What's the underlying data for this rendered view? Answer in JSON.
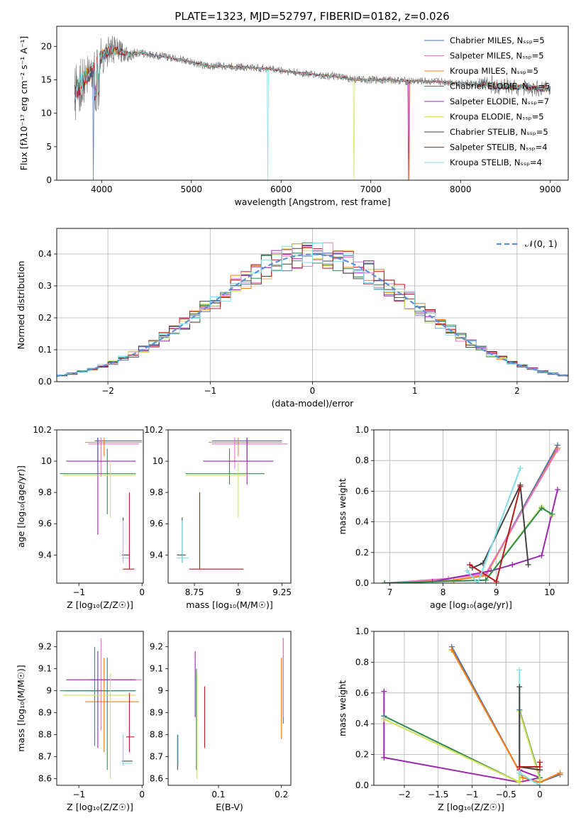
{
  "title": "PLATE=1323, MJD=52797, FIBERID=0182, z=0.026",
  "chart_data": [
    {
      "id": "spectrum",
      "type": "line",
      "xlabel": "wavelength [Angstrom, rest frame]",
      "ylabel": "Flux [fλ10⁻¹⁷ erg cm⁻² s⁻¹ A⁻¹]",
      "xlim": [
        3500,
        9200
      ],
      "ylim": [
        0,
        23
      ],
      "xticks": [
        4000,
        5000,
        6000,
        7000,
        8000,
        9000
      ],
      "yticks": [
        0,
        5,
        10,
        15,
        20
      ],
      "grid": false,
      "legend_position": "top-right",
      "series": [
        {
          "name": "Chabrier MILES, Nₛₛₚ=5",
          "color": "#4c72b0"
        },
        {
          "name": "Salpeter MILES, Nₛₛₚ=5",
          "color": "#e377c2"
        },
        {
          "name": "Kroupa MILES, Nₛₛₚ=5",
          "color": "#ff7f0e"
        },
        {
          "name": "Chabrier ELODIE, Nₛₛₚ=5",
          "color": "#2e8b57"
        },
        {
          "name": "Salpeter ELODIE, Nₛₛₚ=7",
          "color": "#9c27b0"
        },
        {
          "name": "Kroupa ELODIE, Nₛₛₚ=5",
          "color": "#d4e157"
        },
        {
          "name": "Chabrier STELIB, Nₛₛₚ=5",
          "color": "#424242"
        },
        {
          "name": "Salpeter STELIB, Nₛₛₚ=4",
          "color": "#b71c1c"
        },
        {
          "name": "Kroupa STELIB, Nₛₛₚ=4",
          "color": "#80deea"
        }
      ],
      "continuum": [
        [
          3700,
          13
        ],
        [
          3800,
          15
        ],
        [
          3900,
          16.5
        ],
        [
          4000,
          18.5
        ],
        [
          4100,
          19.5
        ],
        [
          4200,
          19.3
        ],
        [
          4300,
          18.8
        ],
        [
          4400,
          19.0
        ],
        [
          4500,
          18.9
        ],
        [
          4600,
          18.6
        ],
        [
          4700,
          18.5
        ],
        [
          4800,
          18.2
        ],
        [
          4900,
          18.0
        ],
        [
          5000,
          17.6
        ],
        [
          5100,
          17.3
        ],
        [
          5200,
          17.0
        ],
        [
          5300,
          17.1
        ],
        [
          5400,
          17.0
        ],
        [
          5500,
          16.9
        ],
        [
          5600,
          16.9
        ],
        [
          5700,
          16.8
        ],
        [
          5800,
          16.7
        ],
        [
          5900,
          16.6
        ],
        [
          6000,
          16.4
        ],
        [
          6100,
          16.2
        ],
        [
          6200,
          16.0
        ],
        [
          6300,
          15.9
        ],
        [
          6400,
          15.7
        ],
        [
          6500,
          15.6
        ],
        [
          6600,
          15.5
        ],
        [
          6700,
          15.3
        ],
        [
          6800,
          15.1
        ],
        [
          6900,
          15.0
        ],
        [
          7000,
          15.0
        ],
        [
          7100,
          15.0
        ],
        [
          7200,
          15.0
        ],
        [
          7300,
          14.9
        ],
        [
          7400,
          14.8
        ],
        [
          7500,
          14.8
        ],
        [
          7600,
          14.8
        ],
        [
          7700,
          14.7
        ],
        [
          7800,
          14.7
        ],
        [
          7900,
          14.6
        ],
        [
          8000,
          14.5
        ],
        [
          8100,
          14.4
        ],
        [
          8200,
          14.3
        ],
        [
          8300,
          14.3
        ],
        [
          8400,
          14.2
        ],
        [
          8500,
          14.0
        ],
        [
          8600,
          13.9
        ],
        [
          8700,
          13.9
        ],
        [
          8800,
          13.8
        ],
        [
          8900,
          13.7
        ],
        [
          9000,
          13.7
        ]
      ]
    },
    {
      "id": "residual-histogram",
      "type": "bar",
      "xlabel": "(data-model)/error",
      "ylabel": "Normed distribution",
      "xlim": [
        -2.5,
        2.5
      ],
      "ylim": [
        0,
        0.48
      ],
      "xticks": [
        -2,
        -1,
        0,
        1,
        2
      ],
      "yticks": [
        0.0,
        0.1,
        0.2,
        0.3,
        0.4
      ],
      "grid": true,
      "legend_position": "top-right",
      "reference_curve": {
        "name": "𝒩(0, 1)",
        "color": "#5b8fd6",
        "style": "dashed"
      },
      "bin_width": 0.1
    },
    {
      "id": "age-vs-z",
      "type": "scatter",
      "xlabel": "Z [log₁₀(Z/Z☉)]",
      "ylabel": "age  [log₁₀(age/yr)]",
      "xlim": [
        -1.35,
        0.02
      ],
      "ylim": [
        9.22,
        10.2
      ],
      "xticks": [
        -1,
        0
      ],
      "yticks": [
        9.4,
        9.6,
        9.8,
        10.0,
        10.2
      ]
    },
    {
      "id": "age-vs-mass",
      "type": "scatter",
      "xlabel": "mass [log₁₀(M/M☉)]",
      "ylabel": "",
      "xlim": [
        8.6,
        9.3
      ],
      "ylim": [
        9.22,
        10.2
      ],
      "xticks": [
        8.75,
        9.0,
        9.25
      ],
      "yticks": [
        9.4,
        9.6,
        9.8,
        10.0,
        10.2
      ]
    },
    {
      "id": "massweight-vs-age",
      "type": "line",
      "xlabel": "age  [log₁₀(age/yr)]",
      "ylabel": "mass weight",
      "xlim": [
        6.7,
        10.35
      ],
      "ylim": [
        0,
        1.0
      ],
      "xticks": [
        7,
        8,
        9,
        10
      ],
      "yticks": [
        0.0,
        0.2,
        0.4,
        0.6,
        0.8,
        1.0
      ],
      "grid": true,
      "series": [
        {
          "color": "#4c72b0",
          "points": [
            [
              6.9,
              0.0
            ],
            [
              8.2,
              0.02
            ],
            [
              8.8,
              0.05
            ],
            [
              10.15,
              0.9
            ]
          ]
        },
        {
          "color": "#ff7f0e",
          "points": [
            [
              6.9,
              0.0
            ],
            [
              8.2,
              0.02
            ],
            [
              8.8,
              0.05
            ],
            [
              10.15,
              0.88
            ]
          ]
        },
        {
          "color": "#e377c2",
          "points": [
            [
              6.9,
              0.0
            ],
            [
              8.1,
              0.03
            ],
            [
              8.8,
              0.06
            ],
            [
              10.15,
              0.87
            ]
          ]
        },
        {
          "color": "#9c27b0",
          "points": [
            [
              7.8,
              0.01
            ],
            [
              8.9,
              0.08
            ],
            [
              9.3,
              0.12
            ],
            [
              9.85,
              0.18
            ],
            [
              10.15,
              0.61
            ]
          ]
        },
        {
          "color": "#d4e157",
          "points": [
            [
              6.9,
              0.0
            ],
            [
              8.8,
              0.02
            ],
            [
              9.85,
              0.5
            ],
            [
              10.05,
              0.44
            ]
          ]
        },
        {
          "color": "#2e8b57",
          "points": [
            [
              6.9,
              0.0
            ],
            [
              8.8,
              0.02
            ],
            [
              9.85,
              0.49
            ],
            [
              10.05,
              0.45
            ]
          ]
        },
        {
          "color": "#424242",
          "points": [
            [
              8.55,
              0.1
            ],
            [
              8.75,
              0.13
            ],
            [
              9.45,
              0.64
            ],
            [
              9.6,
              0.12
            ]
          ]
        },
        {
          "color": "#b71c1c",
          "points": [
            [
              8.5,
              0.12
            ],
            [
              9.0,
              0.01
            ],
            [
              9.45,
              0.63
            ]
          ]
        },
        {
          "color": "#80deea",
          "points": [
            [
              8.45,
              0.08
            ],
            [
              8.65,
              0.0
            ],
            [
              9.45,
              0.75
            ]
          ]
        }
      ]
    },
    {
      "id": "mass-vs-z",
      "type": "scatter",
      "xlabel": "Z [log₁₀(Z/Z☉)]",
      "ylabel": "mass [log₁₀(M/M☉)]",
      "xlim": [
        -1.35,
        0.02
      ],
      "ylim": [
        8.57,
        9.27
      ],
      "xticks": [
        -1,
        0
      ],
      "yticks": [
        8.6,
        8.7,
        8.8,
        8.9,
        9.0,
        9.1,
        9.2
      ]
    },
    {
      "id": "mass-vs-ebv",
      "type": "scatter",
      "xlabel": "E(B-V)",
      "ylabel": "",
      "xlim": [
        0.02,
        0.215
      ],
      "ylim": [
        8.57,
        9.27
      ],
      "xticks": [
        0.1,
        0.2
      ],
      "yticks": [
        8.6,
        8.7,
        8.8,
        8.9,
        9.0,
        9.1,
        9.2
      ]
    },
    {
      "id": "massweight-vs-z",
      "type": "line",
      "xlabel": "Z [log₁₀(Z/Z☉)]",
      "ylabel": "mass weight",
      "xlim": [
        -2.45,
        0.42
      ],
      "ylim": [
        0,
        1.0
      ],
      "xticks": [
        -2.0,
        -1.5,
        -1.0,
        -0.5,
        0.0
      ],
      "yticks": [
        0.0,
        0.2,
        0.4,
        0.6,
        0.8,
        1.0
      ],
      "grid": true,
      "series": [
        {
          "color": "#4c72b0",
          "points": [
            [
              -1.3,
              0.9
            ],
            [
              -0.25,
              0.05
            ],
            [
              0.0,
              0.02
            ],
            [
              0.3,
              0.07
            ]
          ]
        },
        {
          "color": "#ff7f0e",
          "points": [
            [
              -1.3,
              0.88
            ],
            [
              -0.25,
              0.05
            ],
            [
              0.0,
              0.02
            ],
            [
              0.3,
              0.08
            ]
          ]
        },
        {
          "color": "#9c27b0",
          "points": [
            [
              -2.3,
              0.61
            ],
            [
              -2.3,
              0.18
            ],
            [
              -0.3,
              0.02
            ],
            [
              0.0,
              0.05
            ],
            [
              -0.3,
              0.1
            ]
          ]
        },
        {
          "color": "#2e8b57",
          "points": [
            [
              -2.3,
              0.45
            ],
            [
              -0.3,
              0.02
            ],
            [
              -0.3,
              0.49
            ],
            [
              0.0,
              0.05
            ]
          ]
        },
        {
          "color": "#d4e157",
          "points": [
            [
              -2.3,
              0.43
            ],
            [
              -0.3,
              0.02
            ],
            [
              -0.3,
              0.48
            ],
            [
              0.0,
              0.04
            ]
          ]
        },
        {
          "color": "#80deea",
          "points": [
            [
              -0.3,
              0.75
            ],
            [
              -0.3,
              0.08
            ],
            [
              0.0,
              0.0
            ]
          ]
        },
        {
          "color": "#424242",
          "points": [
            [
              -0.3,
              0.64
            ],
            [
              -0.3,
              0.12
            ],
            [
              0.0,
              0.1
            ]
          ]
        },
        {
          "color": "#b71c1c",
          "points": [
            [
              -0.3,
              0.12
            ],
            [
              0.0,
              0.12
            ],
            [
              0.0,
              0.15
            ]
          ]
        }
      ]
    }
  ]
}
